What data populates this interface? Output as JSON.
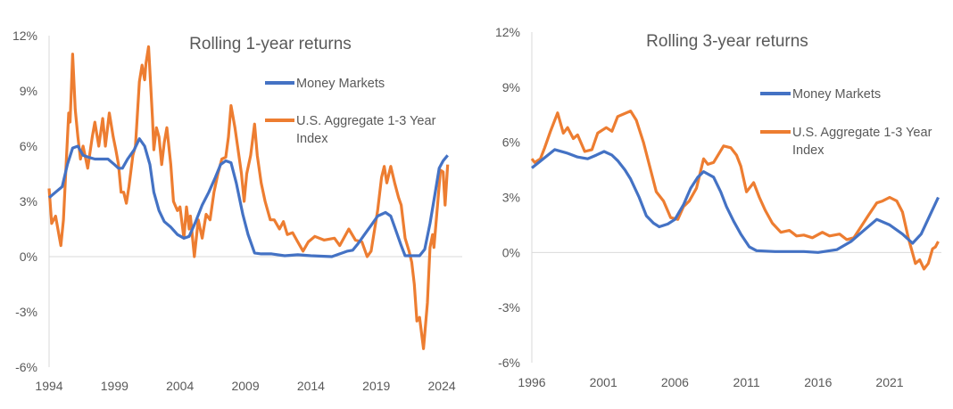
{
  "chart_data": [
    {
      "type": "line",
      "title": "Rolling 1-year returns",
      "xlabel": "",
      "ylabel": "",
      "xlim": [
        1994,
        2024.5
      ],
      "ylim": [
        -6,
        12
      ],
      "x_ticks": [
        1994,
        1999,
        2004,
        2009,
        2014,
        2019,
        2024
      ],
      "y_ticks": [
        12,
        9,
        6,
        3,
        0,
        -3,
        -6
      ],
      "y_tick_labels": [
        "12%",
        "9%",
        "6%",
        "3%",
        "0%",
        "-3%",
        "-6%"
      ],
      "grid": "zero line only",
      "legend_position": "top-right",
      "series": [
        {
          "name": "Money Markets",
          "color": "#4472C4",
          "x": [
            1994,
            1994.5,
            1995,
            1995.4,
            1995.8,
            1996.2,
            1996.6,
            1997,
            1997.5,
            1998,
            1998.5,
            1999,
            1999.3,
            1999.6,
            2000,
            2000.5,
            2000.9,
            2001.3,
            2001.7,
            2002,
            2002.4,
            2002.8,
            2003.3,
            2003.8,
            2004.3,
            2004.7,
            2005.2,
            2005.7,
            2006.2,
            2006.7,
            2007.1,
            2007.5,
            2007.9,
            2008.3,
            2008.8,
            2009.2,
            2009.7,
            2010.2,
            2011,
            2012,
            2013,
            2014,
            2015,
            2015.6,
            2016.2,
            2016.8,
            2017.2,
            2017.6,
            2018.1,
            2018.6,
            2019.1,
            2019.7,
            2020.1,
            2020.5,
            2020.9,
            2021.2,
            2021.7,
            2022.3,
            2022.7,
            2023.1,
            2023.5,
            2023.8,
            2024.1,
            2024.45
          ],
          "y": [
            3.2,
            3.5,
            3.8,
            5.0,
            5.9,
            6.0,
            5.5,
            5.4,
            5.3,
            5.3,
            5.3,
            5.0,
            4.8,
            4.8,
            5.3,
            5.8,
            6.4,
            6.0,
            5.0,
            3.5,
            2.5,
            1.9,
            1.6,
            1.2,
            1.0,
            1.1,
            1.9,
            2.8,
            3.5,
            4.3,
            5.0,
            5.2,
            5.1,
            4.0,
            2.3,
            1.2,
            0.2,
            0.15,
            0.15,
            0.05,
            0.1,
            0.05,
            0.02,
            0.0,
            0.15,
            0.3,
            0.35,
            0.7,
            1.2,
            1.7,
            2.2,
            2.4,
            2.2,
            1.4,
            0.6,
            0.05,
            0.05,
            0.05,
            0.4,
            1.8,
            3.5,
            4.8,
            5.2,
            5.5
          ]
        },
        {
          "name": "U.S. Aggregate 1-3 Year Index",
          "color": "#ED7D31",
          "x": [
            1994,
            1994.2,
            1994.5,
            1994.8,
            1994.9,
            1995.1,
            1995.3,
            1995.5,
            1995.6,
            1995.7,
            1995.8,
            1996.0,
            1996.2,
            1996.4,
            1996.6,
            1996.95,
            1997.3,
            1997.5,
            1997.8,
            1998.1,
            1998.3,
            1998.6,
            1998.9,
            1999.1,
            1999.3,
            1999.5,
            1999.7,
            1999.9,
            2000.1,
            2000.4,
            2000.6,
            2000.9,
            2001.1,
            2001.3,
            2001.4,
            2001.6,
            2001.9,
            2002.0,
            2002.2,
            2002.4,
            2002.6,
            2002.8,
            2003.0,
            2003.3,
            2003.5,
            2003.8,
            2004.0,
            2004.3,
            2004.5,
            2004.7,
            2004.8,
            2005.1,
            2005.4,
            2005.7,
            2006.0,
            2006.3,
            2006.6,
            2006.9,
            2007.2,
            2007.5,
            2007.7,
            2007.9,
            2008.2,
            2008.5,
            2008.7,
            2008.9,
            2009.1,
            2009.4,
            2009.7,
            2009.9,
            2010.2,
            2010.5,
            2010.9,
            2011.2,
            2011.6,
            2011.9,
            2012.2,
            2012.6,
            2013.0,
            2013.4,
            2013.8,
            2014.3,
            2015.0,
            2015.8,
            2016.2,
            2016.9,
            2017.4,
            2017.9,
            2018.3,
            2018.6,
            2019.1,
            2019.4,
            2019.6,
            2019.8,
            2020.1,
            2020.4,
            2020.7,
            2020.9,
            2021.2,
            2021.5,
            2021.7,
            2021.9,
            2022.1,
            2022.3,
            2022.6,
            2022.9,
            2023.1,
            2023.3,
            2023.4,
            2023.7,
            2023.9,
            2024.1,
            2024.25,
            2024.45
          ],
          "y": [
            3.7,
            1.8,
            2.2,
            1.0,
            0.6,
            2.0,
            5.0,
            7.8,
            7.3,
            9.0,
            11.0,
            8.0,
            6.5,
            5.3,
            6.0,
            4.8,
            6.5,
            7.3,
            6.0,
            7.5,
            6.0,
            7.8,
            6.5,
            5.8,
            5.0,
            3.5,
            3.5,
            2.9,
            3.8,
            5.5,
            6.0,
            9.5,
            10.4,
            9.6,
            10.5,
            11.4,
            7.5,
            5.8,
            7.0,
            6.5,
            5.0,
            6.2,
            7.0,
            5.0,
            3.0,
            2.5,
            2.7,
            1.0,
            2.7,
            1.5,
            2.2,
            0.0,
            2.0,
            1.0,
            2.3,
            2.0,
            3.5,
            4.5,
            5.3,
            5.4,
            6.5,
            8.2,
            7.0,
            5.5,
            4.5,
            3.0,
            4.5,
            5.5,
            7.2,
            5.5,
            4.0,
            3.0,
            2.0,
            2.0,
            1.5,
            1.9,
            1.2,
            1.3,
            0.8,
            0.3,
            0.8,
            1.1,
            0.9,
            1.0,
            0.6,
            1.5,
            0.9,
            0.8,
            0.0,
            0.3,
            2.5,
            4.3,
            4.9,
            4.0,
            4.9,
            4.0,
            3.2,
            2.8,
            1.0,
            0.3,
            -0.3,
            -1.5,
            -3.5,
            -3.3,
            -5.0,
            -2.5,
            0.5,
            1.2,
            0.5,
            3.0,
            4.7,
            4.6,
            2.8,
            5.0
          ]
        }
      ]
    },
    {
      "type": "line",
      "title": "Rolling 3-year returns",
      "xlabel": "",
      "ylabel": "",
      "xlim": [
        1996,
        2024.4
      ],
      "ylim": [
        -6,
        12
      ],
      "x_ticks": [
        1996,
        2001,
        2006,
        2011,
        2016,
        2021
      ],
      "y_ticks": [
        12,
        9,
        6,
        3,
        0,
        -3,
        -6
      ],
      "y_tick_labels": [
        "12%",
        "9%",
        "6%",
        "3%",
        "0%",
        "-3%",
        "-6%"
      ],
      "grid": "zero line only",
      "legend_position": "top-right",
      "series": [
        {
          "name": "Money Markets",
          "color": "#4472C4",
          "x": [
            1996,
            1996.8,
            1997.6,
            1998.5,
            1999.2,
            1999.9,
            2000.5,
            2001.05,
            2001.6,
            2002.0,
            2002.5,
            2002.9,
            2003.5,
            2004.0,
            2004.5,
            2004.9,
            2005.5,
            2006.0,
            2006.6,
            2007.1,
            2007.6,
            2008.0,
            2008.7,
            2009.2,
            2009.6,
            2010.1,
            2010.6,
            2011.2,
            2011.7,
            2013,
            2015,
            2016,
            2017.3,
            2018.3,
            2019.2,
            2020.1,
            2021.0,
            2021.9,
            2022.6,
            2023.2,
            2023.8,
            2024.4
          ],
          "y": [
            4.6,
            5.1,
            5.6,
            5.4,
            5.2,
            5.1,
            5.3,
            5.5,
            5.3,
            5.0,
            4.5,
            4.0,
            3.0,
            2.0,
            1.6,
            1.4,
            1.55,
            1.8,
            2.6,
            3.5,
            4.1,
            4.4,
            4.1,
            3.3,
            2.5,
            1.7,
            1.0,
            0.3,
            0.1,
            0.05,
            0.05,
            0.0,
            0.15,
            0.6,
            1.2,
            1.8,
            1.5,
            1.0,
            0.5,
            1.0,
            2.0,
            3.0
          ]
        },
        {
          "name": "U.S. Aggregate 1-3 Year Index",
          "color": "#ED7D31",
          "x": [
            1996,
            1996.2,
            1996.6,
            1996.9,
            1997.3,
            1997.8,
            1998.2,
            1998.5,
            1998.9,
            1999.2,
            1999.7,
            2000.2,
            2000.6,
            2001.2,
            2001.6,
            2002.0,
            2002.9,
            2003.3,
            2003.8,
            2004.2,
            2004.7,
            2005.2,
            2005.7,
            2006.2,
            2006.6,
            2007.0,
            2007.5,
            2008.0,
            2008.3,
            2008.7,
            2009.4,
            2009.9,
            2010.3,
            2010.6,
            2011.0,
            2011.5,
            2011.9,
            2012.3,
            2012.8,
            2013.4,
            2014.0,
            2014.5,
            2015.0,
            2015.6,
            2016.3,
            2016.8,
            2017.5,
            2018.0,
            2018.5,
            2019.0,
            2019.5,
            2020.1,
            2020.5,
            2021.0,
            2021.5,
            2021.9,
            2022.3,
            2022.8,
            2023.1,
            2023.4,
            2023.7,
            2024.0,
            2024.2,
            2024.4
          ],
          "y": [
            5.1,
            4.9,
            5.1,
            5.7,
            6.6,
            7.6,
            6.5,
            6.8,
            6.2,
            6.4,
            5.5,
            5.6,
            6.5,
            6.8,
            6.6,
            7.4,
            7.7,
            7.2,
            6.0,
            4.8,
            3.3,
            2.8,
            1.9,
            1.8,
            2.5,
            2.8,
            3.5,
            5.1,
            4.8,
            4.9,
            5.8,
            5.7,
            5.3,
            4.7,
            3.3,
            3.8,
            3.0,
            2.3,
            1.6,
            1.1,
            1.2,
            0.9,
            0.95,
            0.8,
            1.1,
            0.9,
            1.0,
            0.7,
            0.8,
            1.4,
            2.0,
            2.7,
            2.8,
            3.0,
            2.8,
            2.2,
            0.8,
            -0.6,
            -0.4,
            -0.9,
            -0.6,
            0.2,
            0.3,
            0.6
          ]
        }
      ]
    }
  ]
}
